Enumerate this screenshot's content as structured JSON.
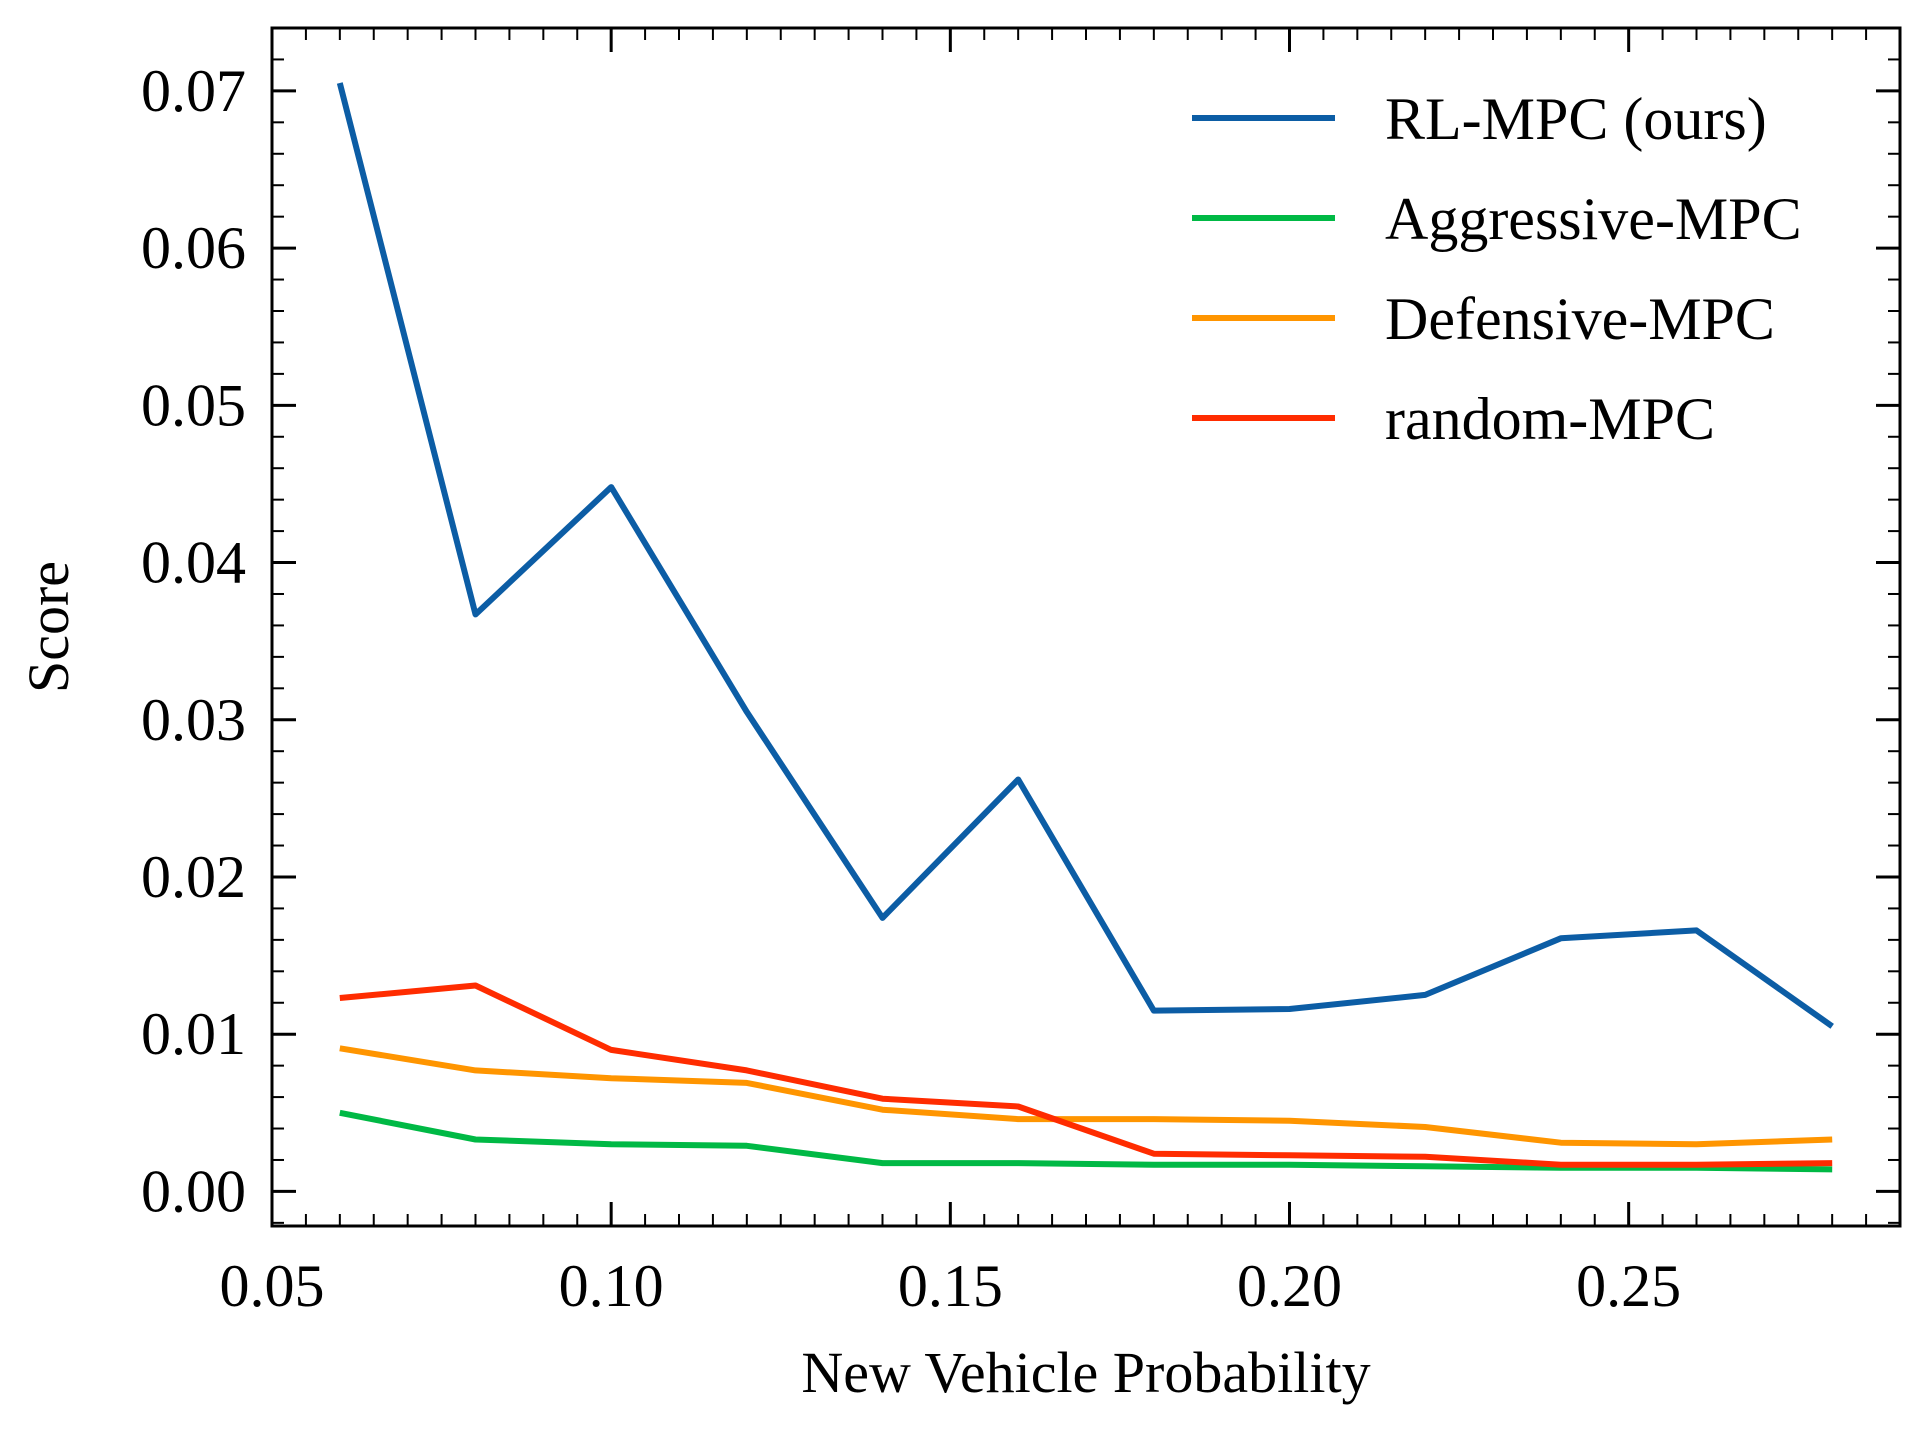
{
  "chart_data": {
    "type": "line",
    "title": "",
    "xlabel": "New Vehicle Probability",
    "ylabel": "Score",
    "xlim": [
      0.05,
      0.29
    ],
    "ylim": [
      -0.0022,
      0.074
    ],
    "x_ticks": [
      0.05,
      0.1,
      0.15,
      0.2,
      0.25
    ],
    "x_tick_labels": [
      "0.05",
      "0.10",
      "0.15",
      "0.20",
      "0.25"
    ],
    "y_ticks": [
      0.0,
      0.01,
      0.02,
      0.03,
      0.04,
      0.05,
      0.06,
      0.07
    ],
    "y_tick_labels": [
      "0.00",
      "0.01",
      "0.02",
      "0.03",
      "0.04",
      "0.05",
      "0.06",
      "0.07"
    ],
    "grid": false,
    "legend_position": "top-right",
    "x": [
      0.06,
      0.08,
      0.1,
      0.12,
      0.14,
      0.16,
      0.18,
      0.2,
      0.22,
      0.24,
      0.26,
      0.28
    ],
    "series": [
      {
        "name": "RL-MPC (ours)",
        "color": "#0C5DA5",
        "values": [
          0.0705,
          0.0367,
          0.0448,
          0.0305,
          0.0174,
          0.0262,
          0.0115,
          0.0116,
          0.0125,
          0.0161,
          0.0166,
          0.0105
        ]
      },
      {
        "name": "Aggressive-MPC",
        "color": "#00B945",
        "values": [
          0.005,
          0.0033,
          0.003,
          0.0029,
          0.0018,
          0.0018,
          0.0017,
          0.0017,
          0.0016,
          0.0015,
          0.0015,
          0.0014
        ]
      },
      {
        "name": "Defensive-MPC",
        "color": "#FF9500",
        "values": [
          0.0091,
          0.0077,
          0.0072,
          0.0069,
          0.0052,
          0.0046,
          0.0046,
          0.0045,
          0.0041,
          0.0031,
          0.003,
          0.0033
        ]
      },
      {
        "name": "random-MPC",
        "color": "#FF2C00",
        "values": [
          0.0123,
          0.0131,
          0.009,
          0.0077,
          0.0059,
          0.0054,
          0.0024,
          0.0023,
          0.0022,
          0.0017,
          0.0017,
          0.0018
        ]
      }
    ]
  }
}
